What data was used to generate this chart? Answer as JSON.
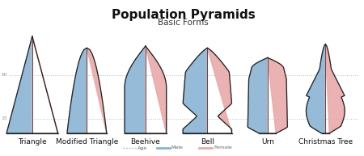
{
  "title": "Population Pyramids",
  "subtitle": "Basic Forms",
  "background_color": "#ffffff",
  "title_fontsize": 11,
  "subtitle_fontsize": 7.5,
  "label_fontsize": 6.5,
  "shapes": [
    "Triangle",
    "Modified Triangle",
    "Beehive",
    "Bell",
    "Urn",
    "Christmas Tree"
  ],
  "male_color": "#8ab4d4",
  "female_color": "#e8aaaa",
  "edge_color": "#222222",
  "gridline_color": "#bbbbbb",
  "age_label_color": "#999999",
  "legend_age_color": "#aaaaaa"
}
